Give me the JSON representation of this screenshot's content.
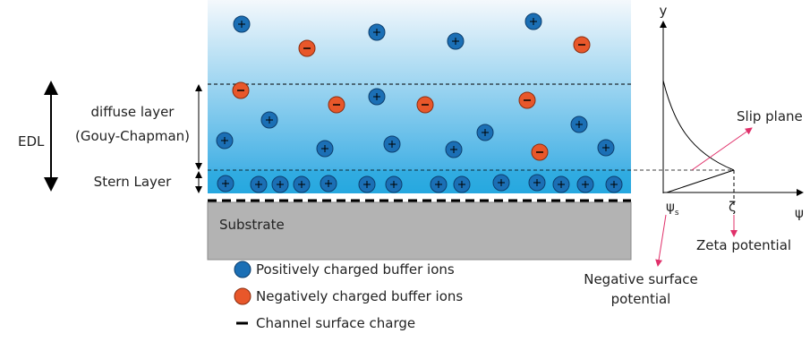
{
  "labels": {
    "edl": "EDL",
    "diffuse_layer": "diffuse layer",
    "gouy_chapman": "(Gouy-Chapman)",
    "stern_layer": "Stern Layer",
    "substrate": "Substrate"
  },
  "legend": {
    "positive": "Positively charged buffer ions",
    "negative": "Negatively charged buffer ions",
    "surface_charge": "Channel surface charge"
  },
  "graph": {
    "y_axis": "y",
    "x_axis": "ψ",
    "psi_s": {
      "symbol": "ψ",
      "subscript": "s"
    },
    "zeta_symbol": "ζ",
    "slip_plane": "Slip plane",
    "zeta_potential": "Zeta potential",
    "negative_surface_potential": [
      "Negative surface",
      "potential"
    ]
  }
}
